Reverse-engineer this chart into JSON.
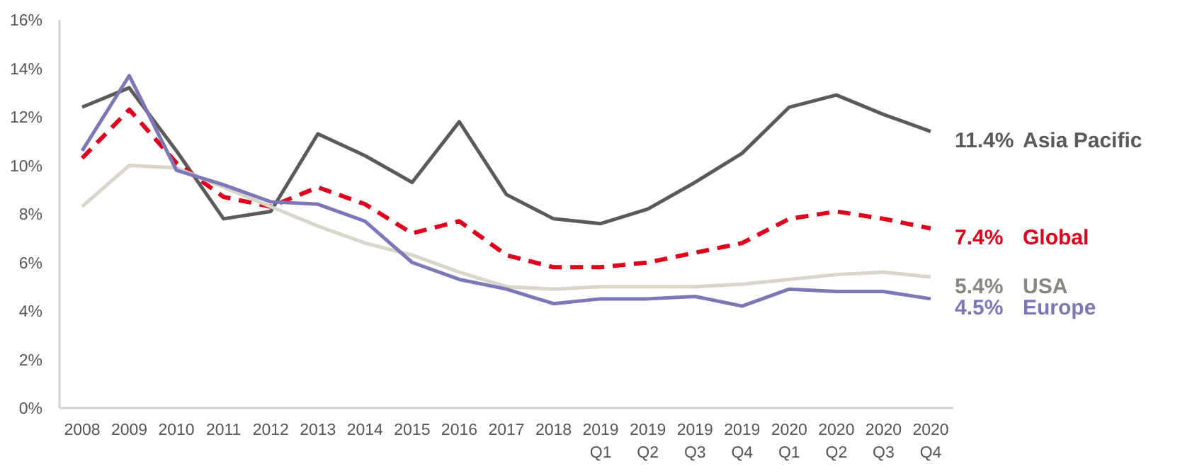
{
  "chart_data": {
    "type": "line",
    "categories": [
      "2008",
      "2009",
      "2010",
      "2011",
      "2012",
      "2013",
      "2014",
      "2015",
      "2016",
      "2017",
      "2018",
      "2019 Q1",
      "2019 Q2",
      "2019 Q3",
      "2019 Q4",
      "2020 Q1",
      "2020 Q2",
      "2020 Q3",
      "2020 Q4"
    ],
    "series": [
      {
        "name": "Asia Pacific",
        "color": "#5a5a5a",
        "line_style": "solid",
        "values": [
          12.4,
          13.2,
          10.6,
          7.8,
          8.1,
          11.3,
          10.4,
          9.3,
          11.8,
          8.8,
          7.8,
          7.6,
          8.2,
          9.3,
          10.5,
          12.4,
          12.9,
          12.1,
          11.4
        ],
        "value_labels": [
          null,
          null,
          null,
          null,
          null,
          null,
          null,
          null,
          null,
          null,
          null,
          null,
          null,
          null,
          null,
          null,
          null,
          null,
          "11.4%"
        ]
      },
      {
        "name": "Global",
        "color": "#e0001b",
        "line_style": "dashed",
        "values": [
          10.3,
          12.3,
          10.1,
          8.7,
          8.3,
          9.1,
          8.4,
          7.2,
          7.7,
          6.3,
          5.8,
          5.8,
          6.0,
          6.4,
          6.8,
          7.8,
          8.1,
          7.8,
          7.4
        ],
        "value_labels": [
          null,
          null,
          null,
          null,
          null,
          null,
          null,
          null,
          null,
          null,
          null,
          null,
          null,
          null,
          null,
          null,
          null,
          null,
          "7.4%"
        ]
      },
      {
        "name": "USA",
        "color": "#d9d5c8",
        "line_style": "solid",
        "values": [
          8.3,
          10.0,
          9.9,
          9.1,
          8.3,
          7.5,
          6.8,
          6.3,
          5.6,
          5.0,
          4.9,
          5.0,
          5.0,
          5.0,
          5.1,
          5.3,
          5.5,
          5.6,
          5.4
        ],
        "value_labels": [
          null,
          null,
          null,
          null,
          null,
          null,
          null,
          null,
          null,
          null,
          null,
          null,
          null,
          null,
          null,
          null,
          null,
          null,
          "5.4%"
        ]
      },
      {
        "name": "Europe",
        "color": "#7b77b8",
        "line_style": "solid",
        "values": [
          10.6,
          13.7,
          9.8,
          9.2,
          8.5,
          8.4,
          7.7,
          6.0,
          5.3,
          4.9,
          4.3,
          4.5,
          4.5,
          4.6,
          4.2,
          4.9,
          4.8,
          4.8,
          4.5
        ],
        "value_labels": [
          null,
          null,
          null,
          null,
          null,
          null,
          null,
          null,
          null,
          null,
          null,
          null,
          null,
          null,
          null,
          null,
          null,
          null,
          "4.5%"
        ]
      }
    ],
    "ylim": [
      0,
      16
    ],
    "yticks": [
      {
        "value": 0,
        "label": "0%"
      },
      {
        "value": 2,
        "label": "2%"
      },
      {
        "value": 4,
        "label": "4%"
      },
      {
        "value": 6,
        "label": "6%"
      },
      {
        "value": 8,
        "label": "8%"
      },
      {
        "value": 10,
        "label": "10%"
      },
      {
        "value": 12,
        "label": "12%"
      },
      {
        "value": 14,
        "label": "14%"
      },
      {
        "value": 16,
        "label": "16%"
      }
    ],
    "grid": false,
    "marker": "none"
  }
}
